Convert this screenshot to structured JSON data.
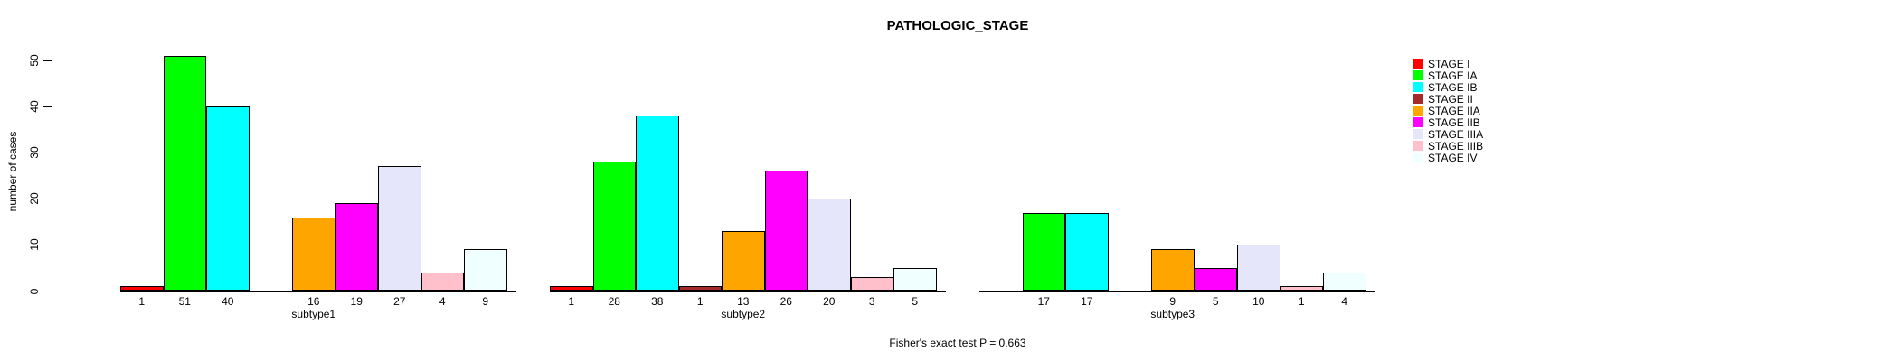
{
  "title": "PATHOLOGIC_STAGE",
  "y_axis": {
    "label": "number of cases",
    "ticks": [
      0,
      10,
      20,
      30,
      40,
      50
    ]
  },
  "footer": "Fisher's exact test P = 0.663",
  "chart_data": {
    "type": "bar",
    "grouped": true,
    "title": "PATHOLOGIC_STAGE",
    "xlabel": "",
    "ylabel": "number of cases",
    "ylim": [
      0,
      51
    ],
    "yticks": [
      0,
      10,
      20,
      30,
      40,
      50
    ],
    "grid": false,
    "legend_position": "right",
    "bar_value_labels_shown": true,
    "categories": [
      "subtype1",
      "subtype2",
      "subtype3"
    ],
    "series": [
      {
        "name": "STAGE I",
        "color": "#FF0000",
        "values": [
          1,
          1,
          0
        ]
      },
      {
        "name": "STAGE IA",
        "color": "#00FF00",
        "values": [
          51,
          28,
          17
        ]
      },
      {
        "name": "STAGE IB",
        "color": "#00FFFF",
        "values": [
          40,
          38,
          17
        ]
      },
      {
        "name": "STAGE II",
        "color": "#A52A2A",
        "values": [
          0,
          1,
          0
        ]
      },
      {
        "name": "STAGE IIA",
        "color": "#FFA500",
        "values": [
          16,
          13,
          9
        ]
      },
      {
        "name": "STAGE IIB",
        "color": "#FF00FF",
        "values": [
          19,
          26,
          5
        ]
      },
      {
        "name": "STAGE IIIA",
        "color": "#E6E6FA",
        "values": [
          27,
          20,
          10
        ]
      },
      {
        "name": "STAGE IIIB",
        "color": "#FFC0CB",
        "values": [
          4,
          3,
          1
        ]
      },
      {
        "name": "STAGE IV",
        "color": "#F0FFFF",
        "values": [
          9,
          5,
          4
        ]
      }
    ],
    "annotation": "Fisher's exact test P = 0.663"
  }
}
